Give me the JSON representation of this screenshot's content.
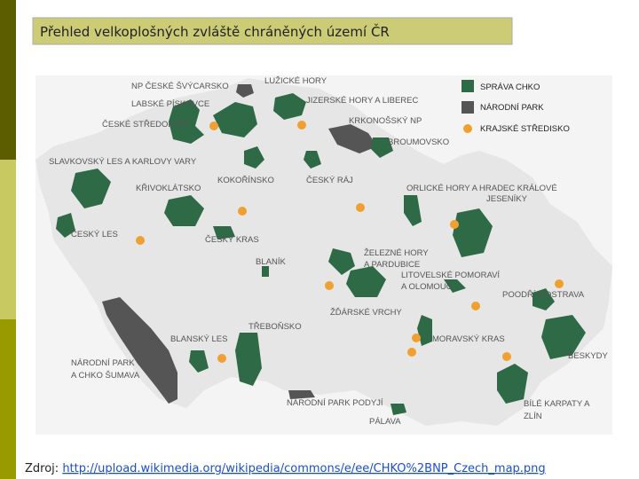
{
  "header": {
    "title": "Přehled velkoplošných zvláště chráněných území ČR"
  },
  "legend": [
    "SPRÁVA CHKO",
    "NÁRODNÍ PARK",
    "KRAJSKÉ STŘEDISKO"
  ],
  "map": {
    "regions": [
      {
        "lines": [
          "NP ČESKÉ ŠVÝCARSKO"
        ]
      },
      {
        "lines": [
          "LUŽICKÉ HORY"
        ]
      },
      {
        "lines": [
          "LABSKÉ PÍSKOVCE"
        ]
      },
      {
        "lines": [
          "JIZERSKÉ HORY A LIBEREC"
        ]
      },
      {
        "lines": [
          "ČESKÉ STŘEDOHOŘÍ"
        ]
      },
      {
        "lines": [
          "KRKONOŠSKÝ NP"
        ]
      },
      {
        "lines": [
          "BROUMOVSKO"
        ]
      },
      {
        "lines": [
          "SLAVKOVSKÝ LES A KARLOVY VARY"
        ]
      },
      {
        "lines": [
          "KŘIVOKLÁTSKO"
        ]
      },
      {
        "lines": [
          "KOKOŘÍNSKO"
        ]
      },
      {
        "lines": [
          "ČESKÝ RÁJ"
        ]
      },
      {
        "lines": [
          "ORLICKÉ HORY A HRADEC KRÁLOVÉ",
          "JESENÍKY"
        ]
      },
      {
        "lines": [
          "ČESKÝ LES"
        ]
      },
      {
        "lines": [
          "ČESKÝ KRAS"
        ]
      },
      {
        "lines": [
          "ŽELEZNÉ HORY",
          "A PARDUBICE"
        ]
      },
      {
        "lines": [
          "BLANÍK"
        ]
      },
      {
        "lines": [
          "LITOVELSKÉ POMORAVÍ",
          "A OLOMOUC"
        ]
      },
      {
        "lines": [
          "POODŘÍ A OSTRAVA"
        ]
      },
      {
        "lines": [
          "ŽĎÁRSKÉ VRCHY"
        ]
      },
      {
        "lines": [
          "TŘEBOŇSKO"
        ]
      },
      {
        "lines": [
          "BLANSKÝ LES"
        ]
      },
      {
        "lines": [
          "MORAVSKÝ KRAS"
        ]
      },
      {
        "lines": [
          "BESKYDY"
        ]
      },
      {
        "lines": [
          "NÁRODNÍ PARK",
          "A CHKO ŠUMAVA"
        ]
      },
      {
        "lines": [
          "NÁRODNÍ PARK PODYJÍ"
        ]
      },
      {
        "lines": [
          "BÍLÉ KARPATY A",
          "ZLÍN"
        ]
      },
      {
        "lines": [
          "PÁLAVA"
        ]
      }
    ]
  },
  "source": {
    "prefix": "Zdroj:",
    "url": "http://upload.wikimedia.org/wikipedia/commons/e/ee/CHKO%2BNP_Czech_map.png"
  }
}
